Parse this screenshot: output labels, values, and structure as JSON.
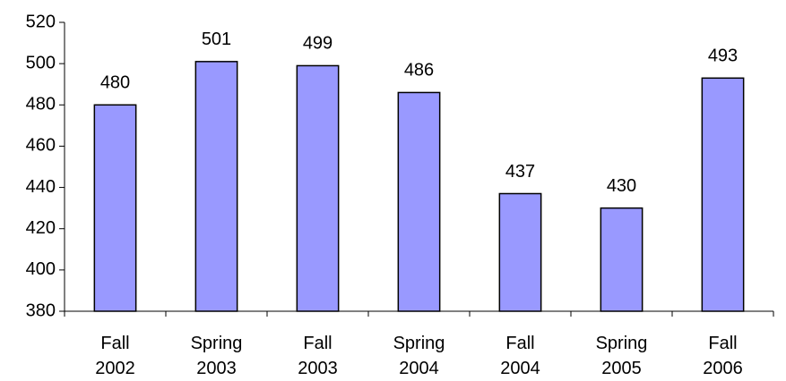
{
  "chart_data": {
    "type": "bar",
    "categories": [
      "Fall 2002",
      "Spring 2003",
      "Fall 2003",
      "Spring 2004",
      "Fall 2004",
      "Spring 2005",
      "Fall 2006"
    ],
    "values": [
      480,
      501,
      499,
      486,
      437,
      430,
      493
    ],
    "color": "#9999ff",
    "ylim": [
      380,
      520
    ],
    "yticks": [
      380,
      400,
      420,
      440,
      460,
      480,
      500,
      520
    ],
    "grid": false
  }
}
